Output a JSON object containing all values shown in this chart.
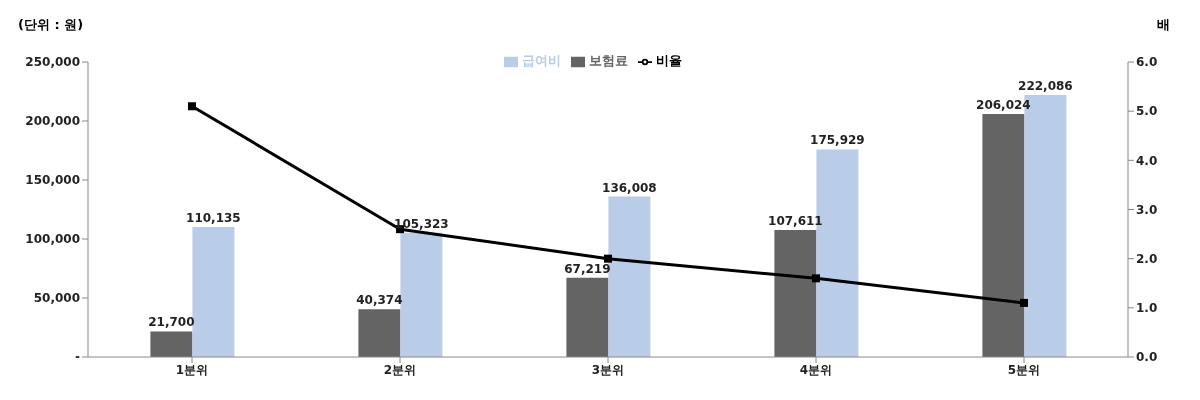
{
  "chart_data": {
    "type": "bar",
    "ylabel": "(단위 : 원)",
    "y2label": "배",
    "categories": [
      "1분위",
      "2분위",
      "3분위",
      "4분위",
      "5분위"
    ],
    "series": [
      {
        "name": "보험료",
        "color": "#646464",
        "values": [
          21700,
          40374,
          67219,
          107611,
          206024
        ],
        "value_labels": [
          "21,700",
          "40,374",
          "67,219",
          "107,611",
          "206,024"
        ]
      },
      {
        "name": "급여비",
        "color": "#b9cde9",
        "values": [
          110135,
          105323,
          136008,
          175929,
          222086
        ],
        "value_labels": [
          "110,135",
          "105,323",
          "136,008",
          "175,929",
          "222,086"
        ]
      },
      {
        "name": "비율",
        "type": "line",
        "axis": "y2",
        "color": "#000000",
        "values": [
          5.1,
          2.6,
          2.0,
          1.6,
          1.1
        ]
      }
    ],
    "ylim": [
      0,
      250000
    ],
    "yticks": [
      {
        "value": 0,
        "label": "-"
      },
      {
        "value": 50000,
        "label": "50,000"
      },
      {
        "value": 100000,
        "label": "100,000"
      },
      {
        "value": 150000,
        "label": "150,000"
      },
      {
        "value": 200000,
        "label": "200,000"
      },
      {
        "value": 250000,
        "label": "250,000"
      }
    ],
    "y2lim": [
      0,
      6
    ],
    "y2ticks": [
      {
        "value": 0,
        "label": "0.0"
      },
      {
        "value": 1,
        "label": "1.0"
      },
      {
        "value": 2,
        "label": "2.0"
      },
      {
        "value": 3,
        "label": "3.0"
      },
      {
        "value": 4,
        "label": "4.0"
      },
      {
        "value": 5,
        "label": "5.0"
      },
      {
        "value": 6,
        "label": "6.0"
      }
    ],
    "legend": "top",
    "marker": "square",
    "line_style": "solid"
  }
}
